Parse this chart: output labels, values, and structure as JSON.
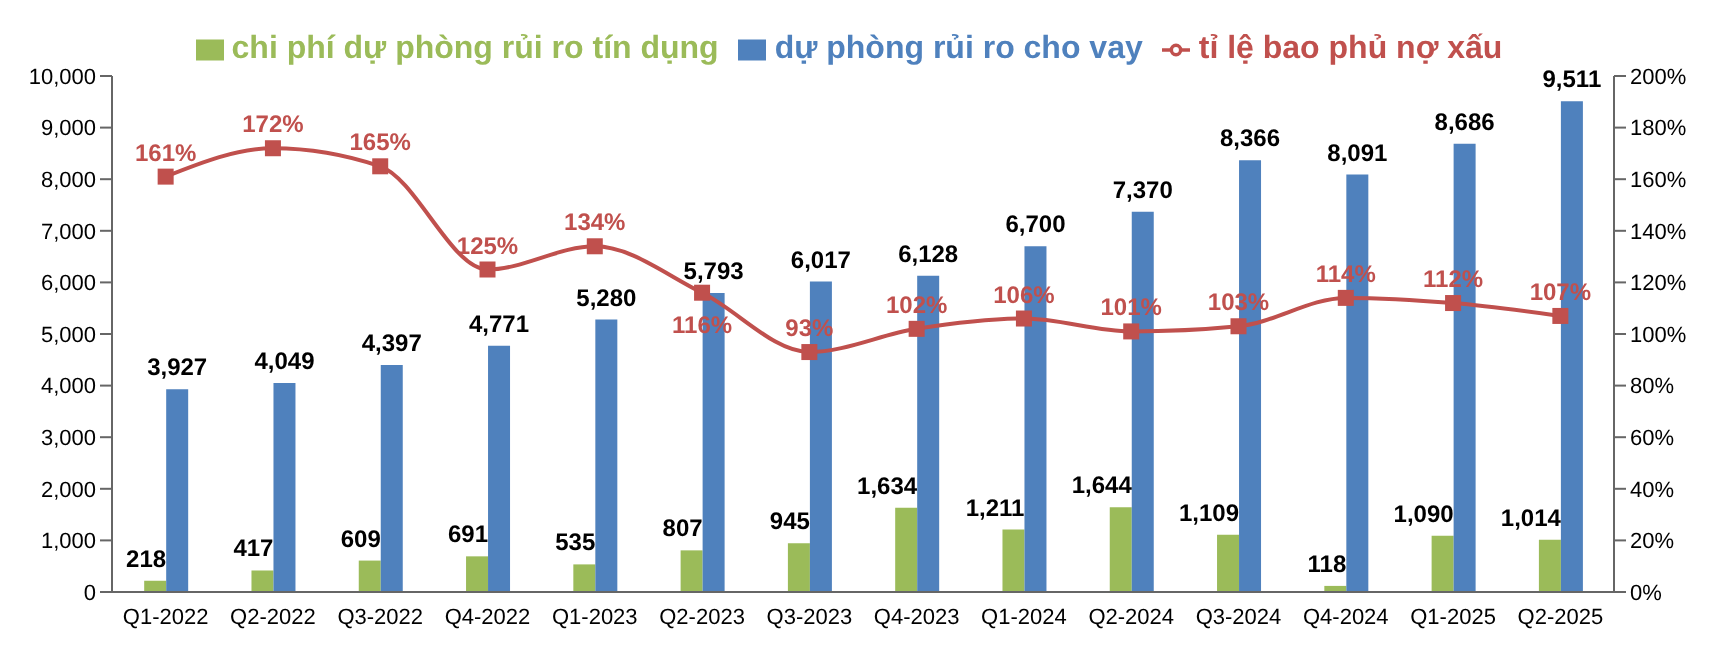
{
  "chart_data": {
    "type": "bar",
    "categories": [
      "Q1-2022",
      "Q2-2022",
      "Q3-2022",
      "Q4-2022",
      "Q1-2023",
      "Q2-2023",
      "Q3-2023",
      "Q4-2023",
      "Q1-2024",
      "Q2-2024",
      "Q3-2024",
      "Q4-2024",
      "Q1-2025",
      "Q2-2025"
    ],
    "series": [
      {
        "name": "chi phí dự phòng rủi ro tín dụng",
        "color": "#9bbb59",
        "values": [
          218,
          417,
          609,
          691,
          535,
          807,
          945,
          1634,
          1211,
          1644,
          1109,
          118,
          1090,
          1014
        ],
        "value_labels": [
          "218",
          "417",
          "609",
          "691",
          "535",
          "807",
          "945",
          "1,634",
          "1,211",
          "1,644",
          "1,109",
          "118",
          "1,090",
          "1,014"
        ]
      },
      {
        "name": "dự phòng rủi ro cho vay",
        "color": "#4f81bd",
        "values": [
          3927,
          4049,
          4397,
          4771,
          5280,
          5793,
          6017,
          6128,
          6700,
          7370,
          8366,
          8091,
          8686,
          9511
        ],
        "value_labels": [
          "3,927",
          "4,049",
          "4,397",
          "4,771",
          "5,280",
          "5,793",
          "6,017",
          "6,128",
          "6,700",
          "7,370",
          "8,366",
          "8,091",
          "8,686",
          "9,511"
        ]
      },
      {
        "name": "tỉ lệ bao phủ nợ xấu",
        "type": "line",
        "axis": "y2",
        "color": "#c0504d",
        "marker": "square",
        "values": [
          161,
          172,
          165,
          125,
          134,
          116,
          93,
          102,
          106,
          101,
          103,
          114,
          112,
          107
        ],
        "value_labels": [
          "161%",
          "172%",
          "165%",
          "125%",
          "134%",
          "116%",
          "93%",
          "102%",
          "106%",
          "101%",
          "103%",
          "114%",
          "112%",
          "107%"
        ]
      }
    ],
    "ylim": [
      0,
      10000
    ],
    "yticks": [
      {
        "value": 0,
        "label": "0"
      },
      {
        "value": 1000,
        "label": "1,000"
      },
      {
        "value": 2000,
        "label": "2,000"
      },
      {
        "value": 3000,
        "label": "3,000"
      },
      {
        "value": 4000,
        "label": "4,000"
      },
      {
        "value": 5000,
        "label": "5,000"
      },
      {
        "value": 6000,
        "label": "6,000"
      },
      {
        "value": 7000,
        "label": "7,000"
      },
      {
        "value": 8000,
        "label": "8,000"
      },
      {
        "value": 9000,
        "label": "9,000"
      },
      {
        "value": 10000,
        "label": "10,000"
      }
    ],
    "y2lim": [
      0,
      200
    ],
    "y2ticks": [
      {
        "value": 0,
        "label": "0%"
      },
      {
        "value": 20,
        "label": "20%"
      },
      {
        "value": 40,
        "label": "40%"
      },
      {
        "value": 60,
        "label": "60%"
      },
      {
        "value": 80,
        "label": "80%"
      },
      {
        "value": 100,
        "label": "100%"
      },
      {
        "value": 120,
        "label": "120%"
      },
      {
        "value": 140,
        "label": "140%"
      },
      {
        "value": 160,
        "label": "160%"
      },
      {
        "value": 180,
        "label": "180%"
      },
      {
        "value": 200,
        "label": "200%"
      }
    ],
    "legend": "top",
    "grid": false
  }
}
